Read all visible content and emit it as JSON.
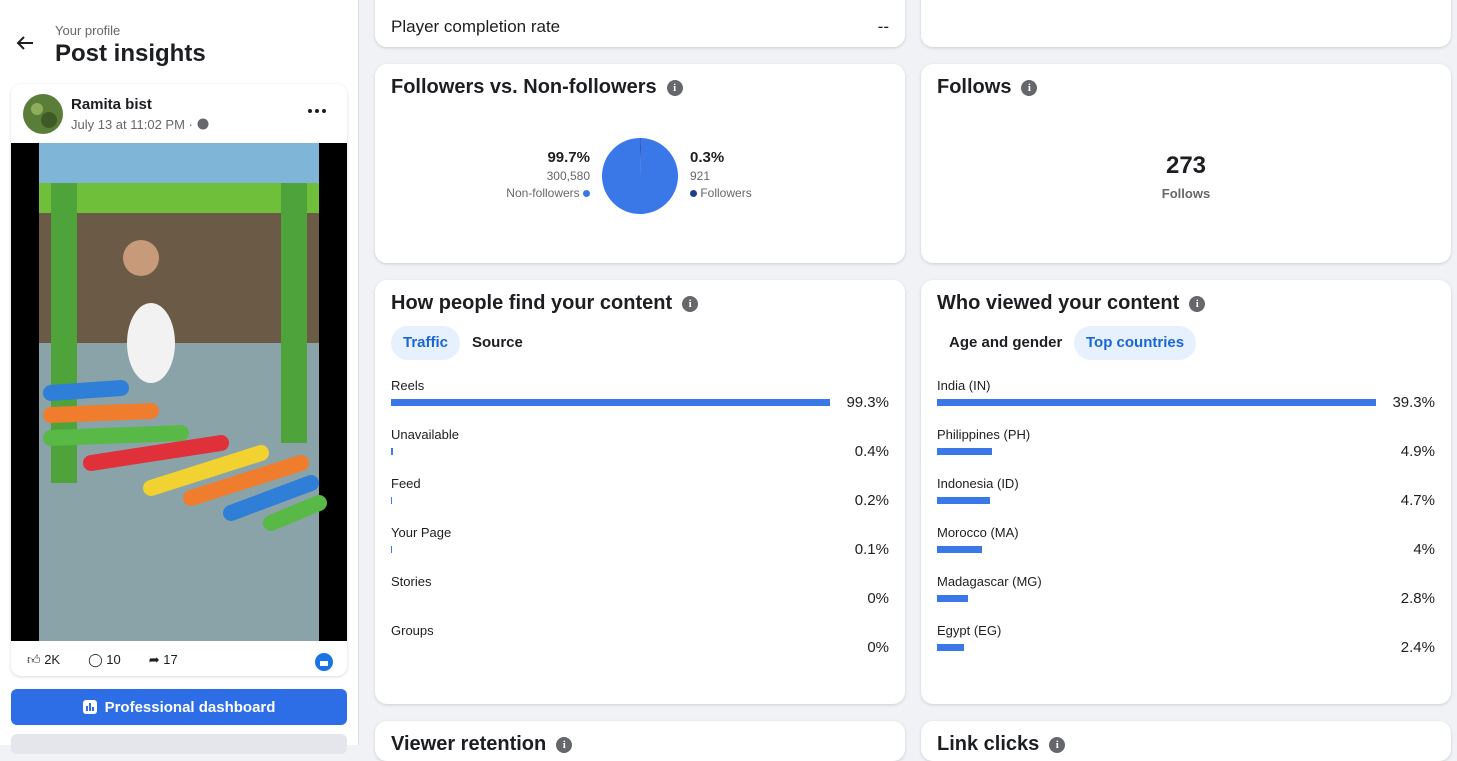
{
  "sidebar": {
    "subtitle": "Your profile",
    "title": "Post insights",
    "post": {
      "author": "Ramita bist",
      "date": "July 13 at 11:02 PM ·",
      "likes": "2K",
      "comments": "10",
      "shares": "17"
    },
    "button": "Professional dashboard"
  },
  "player_completion": {
    "label": "Player completion rate",
    "value": "--"
  },
  "followers_card": {
    "title": "Followers vs. Non-followers",
    "slices": [
      {
        "label": "Non-followers",
        "value": 99.7,
        "value_label": "99.7%",
        "count": "300,580",
        "color": "#3b78e7"
      },
      {
        "label": "Followers",
        "value": 0.3,
        "value_label": "0.3%",
        "count": "921",
        "color": "#1c3f8a"
      }
    ]
  },
  "follows_card": {
    "title": "Follows",
    "value": 273,
    "label": "Follows"
  },
  "find_card": {
    "title": "How people find your content",
    "tabs": [
      "Traffic",
      "Source"
    ],
    "active_tab": 0,
    "color": "#3b78e7",
    "rows": [
      {
        "label": "Reels",
        "value": 99.3,
        "value_label": "99.3%"
      },
      {
        "label": "Unavailable",
        "value": 0.4,
        "value_label": "0.4%"
      },
      {
        "label": "Feed",
        "value": 0.2,
        "value_label": "0.2%"
      },
      {
        "label": "Your Page",
        "value": 0.1,
        "value_label": "0.1%"
      },
      {
        "label": "Stories",
        "value": 0,
        "value_label": "0%"
      },
      {
        "label": "Groups",
        "value": 0,
        "value_label": "0%"
      }
    ]
  },
  "viewers_card": {
    "title": "Who viewed your content",
    "tabs": [
      "Age and gender",
      "Top countries"
    ],
    "active_tab": 1,
    "color": "#3b78e7",
    "rows": [
      {
        "label": "India (IN)",
        "value": 39.3,
        "value_label": "39.3%"
      },
      {
        "label": "Philippines (PH)",
        "value": 4.9,
        "value_label": "4.9%"
      },
      {
        "label": "Indonesia (ID)",
        "value": 4.7,
        "value_label": "4.7%"
      },
      {
        "label": "Morocco (MA)",
        "value": 4,
        "value_label": "4%"
      },
      {
        "label": "Madagascar (MG)",
        "value": 2.8,
        "value_label": "2.8%"
      },
      {
        "label": "Egypt (EG)",
        "value": 2.4,
        "value_label": "2.4%"
      }
    ]
  },
  "bottom_titles": [
    "Viewer retention",
    "Link clicks"
  ]
}
